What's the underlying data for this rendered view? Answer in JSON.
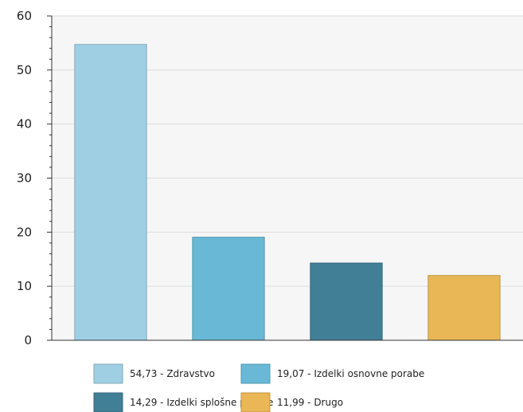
{
  "chart_data": {
    "type": "bar",
    "categories": [
      "Zdravstvo",
      "Izdelki osnovne porabe",
      "Izdelki splošne porabe",
      "Drugo"
    ],
    "values": [
      54.73,
      19.07,
      14.29,
      11.99
    ],
    "colors": [
      "#9ecfe3",
      "#68b8d6",
      "#417f97",
      "#eab756"
    ],
    "ylim": [
      0,
      60
    ],
    "yticks": [
      0,
      10,
      20,
      30,
      40,
      50,
      60
    ],
    "grid": true,
    "legend": {
      "placement": "bottom",
      "items": [
        "54,73 - Zdravstvo",
        "19,07 - Izdelki osnovne porabe",
        "14,29 - Izdelki splošne porabe",
        "11,99 - Drugo"
      ]
    }
  }
}
